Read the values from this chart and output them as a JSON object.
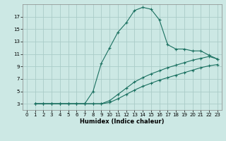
{
  "xlabel": "Humidex (Indice chaleur)",
  "bg_color": "#cce8e4",
  "grid_color": "#aaccc8",
  "line_color": "#1a7060",
  "xlim": [
    -0.5,
    23.5
  ],
  "ylim": [
    2,
    19
  ],
  "xtick_labels": [
    "0",
    "1",
    "2",
    "3",
    "4",
    "5",
    "6",
    "7",
    "8",
    "9",
    "10",
    "11",
    "12",
    "13",
    "14",
    "15",
    "16",
    "17",
    "18",
    "19",
    "20",
    "21",
    "22",
    "23"
  ],
  "xticks": [
    0,
    1,
    2,
    3,
    4,
    5,
    6,
    7,
    8,
    9,
    10,
    11,
    12,
    13,
    14,
    15,
    16,
    17,
    18,
    19,
    20,
    21,
    22,
    23
  ],
  "yticks": [
    3,
    5,
    7,
    9,
    11,
    13,
    15,
    17
  ],
  "curve1_x": [
    1,
    2,
    3,
    4,
    5,
    6,
    7,
    8,
    9,
    10,
    11,
    12,
    13,
    14,
    15,
    16,
    17,
    18,
    19,
    20,
    21,
    22,
    23
  ],
  "curve1_y": [
    3,
    3,
    3,
    3,
    3,
    3,
    3,
    5,
    9.5,
    12,
    14.5,
    16,
    18,
    18.5,
    18.2,
    16.5,
    12.5,
    11.8,
    11.8,
    11.5,
    11.5,
    10.8,
    10.2
  ],
  "curve2_x": [
    1,
    2,
    3,
    4,
    5,
    6,
    7,
    8,
    9,
    10,
    11,
    12,
    13,
    14,
    15,
    16,
    17,
    18,
    19,
    20,
    21,
    22,
    23
  ],
  "curve2_y": [
    3,
    3,
    3,
    3,
    3,
    3,
    3,
    3,
    3,
    3.5,
    4.5,
    5.5,
    6.5,
    7.2,
    7.8,
    8.3,
    8.8,
    9.2,
    9.6,
    10.0,
    10.3,
    10.6,
    10.2
  ],
  "curve3_x": [
    1,
    2,
    3,
    4,
    5,
    6,
    7,
    8,
    9,
    10,
    11,
    12,
    13,
    14,
    15,
    16,
    17,
    18,
    19,
    20,
    21,
    22,
    23
  ],
  "curve3_y": [
    3,
    3,
    3,
    3,
    3,
    3,
    3,
    3,
    3,
    3.2,
    3.8,
    4.5,
    5.2,
    5.8,
    6.3,
    6.8,
    7.2,
    7.6,
    8.0,
    8.4,
    8.8,
    9.1,
    9.3
  ]
}
